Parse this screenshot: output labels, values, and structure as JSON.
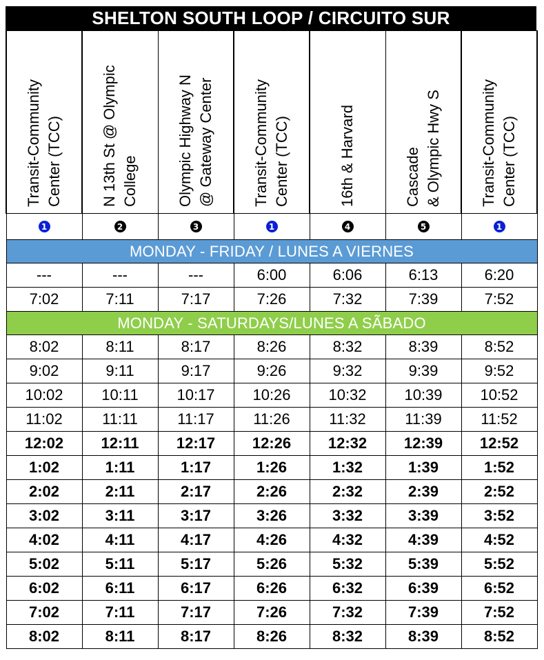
{
  "title": "SHELTON SOUTH LOOP / CIRCUITO SUR",
  "columns": [
    {
      "label": "Transit-Community\nCenter (TCC)",
      "stop": "1",
      "tcc": true
    },
    {
      "label": "N 13th St @ Olympic\nCollege",
      "stop": "2",
      "tcc": false
    },
    {
      "label": "Olympic Highway N\n@ Gateway Center",
      "stop": "3",
      "tcc": false
    },
    {
      "label": "Transit-Community\nCenter (TCC)",
      "stop": "1",
      "tcc": true
    },
    {
      "label": "16th & Harvard",
      "stop": "4",
      "tcc": false
    },
    {
      "label": "Cascade\n& Olympic Hwy S",
      "stop": "5",
      "tcc": false
    },
    {
      "label": "Transit-Community\nCenter (TCC)",
      "stop": "1",
      "tcc": true
    }
  ],
  "colors": {
    "tcc_badge": "#0a1fd6",
    "stop_badge": "#000000",
    "weekday_band": "#5b9bd5",
    "saturday_band": "#8fce4a"
  },
  "sections": [
    {
      "label": "MONDAY - FRIDAY / LUNES A VIERNES",
      "color": "#5b9bd5",
      "rows": [
        {
          "bold": false,
          "times": [
            "---",
            "---",
            "---",
            "6:00",
            "6:06",
            "6:13",
            "6:20"
          ]
        },
        {
          "bold": false,
          "times": [
            "7:02",
            "7:11",
            "7:17",
            "7:26",
            "7:32",
            "7:39",
            "7:52"
          ]
        }
      ]
    },
    {
      "label": "MONDAY - SATURDAYS/LUNES A SÃBADO",
      "color": "#8fce4a",
      "rows": [
        {
          "bold": false,
          "times": [
            "8:02",
            "8:11",
            "8:17",
            "8:26",
            "8:32",
            "8:39",
            "8:52"
          ]
        },
        {
          "bold": false,
          "times": [
            "9:02",
            "9:11",
            "9:17",
            "9:26",
            "9:32",
            "9:39",
            "9:52"
          ]
        },
        {
          "bold": false,
          "times": [
            "10:02",
            "10:11",
            "10:17",
            "10:26",
            "10:32",
            "10:39",
            "10:52"
          ]
        },
        {
          "bold": false,
          "times": [
            "11:02",
            "11:11",
            "11:17",
            "11:26",
            "11:32",
            "11:39",
            "11:52"
          ]
        },
        {
          "bold": true,
          "times": [
            "12:02",
            "12:11",
            "12:17",
            "12:26",
            "12:32",
            "12:39",
            "12:52"
          ]
        },
        {
          "bold": true,
          "times": [
            "1:02",
            "1:11",
            "1:17",
            "1:26",
            "1:32",
            "1:39",
            "1:52"
          ]
        },
        {
          "bold": true,
          "times": [
            "2:02",
            "2:11",
            "2:17",
            "2:26",
            "2:32",
            "2:39",
            "2:52"
          ]
        },
        {
          "bold": true,
          "times": [
            "3:02",
            "3:11",
            "3:17",
            "3:26",
            "3:32",
            "3:39",
            "3:52"
          ]
        },
        {
          "bold": true,
          "times": [
            "4:02",
            "4:11",
            "4:17",
            "4:26",
            "4:32",
            "4:39",
            "4:52"
          ]
        },
        {
          "bold": true,
          "times": [
            "5:02",
            "5:11",
            "5:17",
            "5:26",
            "5:32",
            "5:39",
            "5:52"
          ]
        },
        {
          "bold": true,
          "times": [
            "6:02",
            "6:11",
            "6:17",
            "6:26",
            "6:32",
            "6:39",
            "6:52"
          ]
        },
        {
          "bold": true,
          "times": [
            "7:02",
            "7:11",
            "7:17",
            "7:26",
            "7:32",
            "7:39",
            "7:52"
          ]
        },
        {
          "bold": true,
          "times": [
            "8:02",
            "8:11",
            "8:17",
            "8:26",
            "8:32",
            "8:39",
            "8:52"
          ]
        }
      ]
    }
  ]
}
